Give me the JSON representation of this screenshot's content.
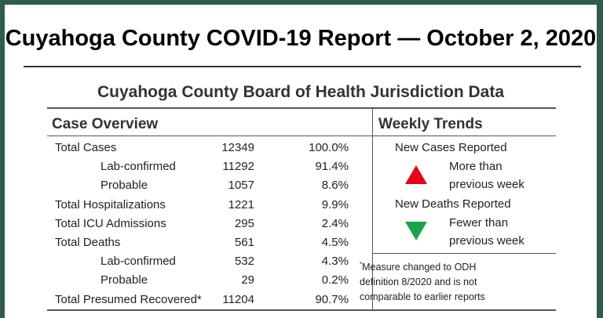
{
  "title": "Cuyahoga County COVID-19 Report — October 2, 2020",
  "subtitle": "Cuyahoga County Board of Health Jurisdiction Data",
  "case_overview": {
    "header": "Case Overview",
    "rows": [
      {
        "label": "Total Cases",
        "count": "12349",
        "pct": "100.0%",
        "indent": false
      },
      {
        "label": "Lab-confirmed",
        "count": "11292",
        "pct": "91.4%",
        "indent": true
      },
      {
        "label": "Probable",
        "count": "1057",
        "pct": "8.6%",
        "indent": true
      },
      {
        "label": "Total Hospitalizations",
        "count": "1221",
        "pct": "9.9%",
        "indent": false
      },
      {
        "label": "Total ICU Admissions",
        "count": "295",
        "pct": "2.4%",
        "indent": false
      },
      {
        "label": "Total Deaths",
        "count": "561",
        "pct": "4.5%",
        "indent": false
      },
      {
        "label": "Lab-confirmed",
        "count": "532",
        "pct": "4.3%",
        "indent": true
      },
      {
        "label": "Probable",
        "count": "29",
        "pct": "0.2%",
        "indent": true
      },
      {
        "label": "Total Presumed Recovered*",
        "count": "11204",
        "pct": "90.7%",
        "indent": false
      }
    ]
  },
  "weekly_trends": {
    "header": "Weekly Trends",
    "cases": {
      "label": "New Cases Reported",
      "line1": "More than",
      "line2": "previous week",
      "direction": "up",
      "color": "#e8001c"
    },
    "deaths": {
      "label": "New Deaths Reported",
      "line1": "Fewer than",
      "line2": "previous week",
      "direction": "down",
      "color": "#1aa34a"
    },
    "note": {
      "mark": "*",
      "line1": "Measure changed to ODH",
      "line2": "definition 8/2020 and is not",
      "line3": "comparable to earlier reports"
    }
  }
}
